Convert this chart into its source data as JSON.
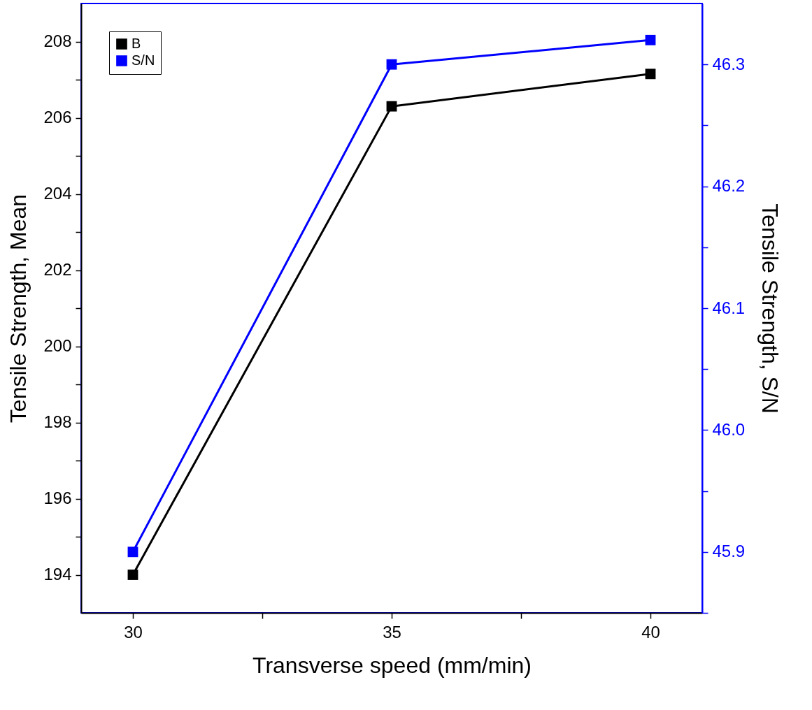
{
  "chart_data": {
    "type": "line",
    "xlabel": "Transverse speed (mm/min)",
    "ylabel": "Tensile Strength, Mean",
    "y2label": "Tensile Strength, S/N",
    "x": [
      30,
      35,
      40
    ],
    "series": [
      {
        "name": "B",
        "color": "#000000",
        "values": [
          194.0,
          206.3,
          207.15
        ]
      },
      {
        "name": "S/N",
        "color": "#0000ff",
        "axis": "y2",
        "values": [
          45.9,
          46.3,
          46.32
        ]
      }
    ],
    "xlim": [
      29,
      41
    ],
    "xticks": [
      30,
      {
        "value": 32.5,
        "label": null
      },
      35,
      {
        "value": 37.5,
        "label": null
      },
      40
    ],
    "ylim": [
      193,
      209
    ],
    "yticks": [
      194,
      {
        "value": 195,
        "label": null
      },
      196,
      {
        "value": 197,
        "label": null
      },
      198,
      {
        "value": 199,
        "label": null
      },
      200,
      {
        "value": 201,
        "label": null
      },
      202,
      {
        "value": 203,
        "label": null
      },
      204,
      {
        "value": 205,
        "label": null
      },
      206,
      {
        "value": 207,
        "label": null
      },
      208
    ],
    "y2lim": [
      45.85,
      46.35
    ],
    "y2ticks": [
      {
        "value": 45.85,
        "label": null
      },
      45.9,
      {
        "value": 45.95,
        "label": null
      },
      {
        "value": 46.0,
        "label": "46.0"
      },
      {
        "value": 46.05,
        "label": null
      },
      46.1,
      {
        "value": 46.15,
        "label": null
      },
      46.2,
      {
        "value": 46.25,
        "label": null
      },
      46.3
    ],
    "legend": "top left",
    "marker": "square",
    "line_style": "solid",
    "grid": false
  }
}
